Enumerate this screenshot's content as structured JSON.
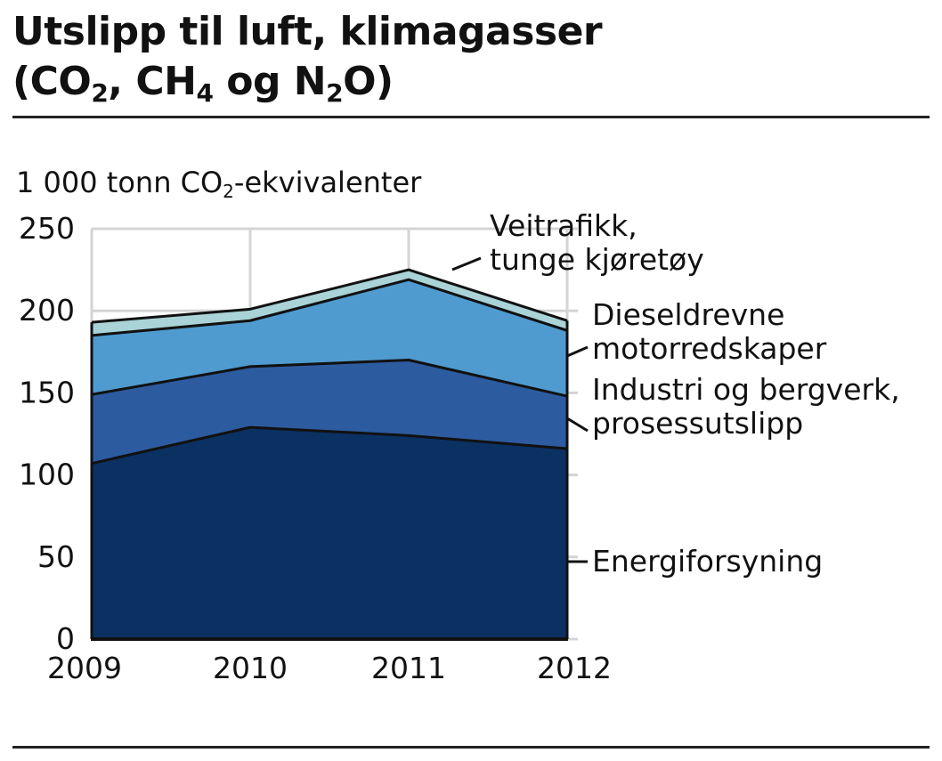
{
  "title": {
    "line1": "Utslipp til luft, klimagasser",
    "line2_parts": [
      "(CO",
      "2",
      ", CH",
      "4",
      " og N",
      "2",
      "O)"
    ]
  },
  "chart_data": {
    "type": "area",
    "stacked": true,
    "ylabel_parts": [
      "1 000 tonn CO",
      "2",
      "-ekvivalenter"
    ],
    "x": [
      "2009",
      "2010",
      "2011",
      "2012"
    ],
    "ylim": [
      0,
      250
    ],
    "yticks": [
      "0",
      "50",
      "100",
      "150",
      "200",
      "250"
    ],
    "grid": true,
    "legend": "right",
    "series": [
      {
        "name": "Energiforsyning",
        "values": [
          107,
          129,
          124,
          116
        ],
        "color": "#0b3162"
      },
      {
        "name": "Industri og bergverk, prosessutslipp",
        "values": [
          42,
          37,
          46,
          32
        ],
        "color": "#2d5b9f"
      },
      {
        "name": "Dieseldrevne motorredskaper",
        "values": [
          36,
          28,
          49,
          40
        ],
        "color": "#4f9bcf"
      },
      {
        "name": "Veitrafikk, tunge kjøretøy",
        "values": [
          8,
          7,
          6,
          6
        ],
        "color": "#a9d3d6"
      }
    ],
    "series_label_lines": [
      [
        "Energiforsyning"
      ],
      [
        "Industri og bergverk,",
        "prosessutslipp"
      ],
      [
        "Dieseldrevne",
        "motorredskaper"
      ],
      [
        "Veitrafikk,",
        "tunge kjøretøy"
      ]
    ]
  }
}
